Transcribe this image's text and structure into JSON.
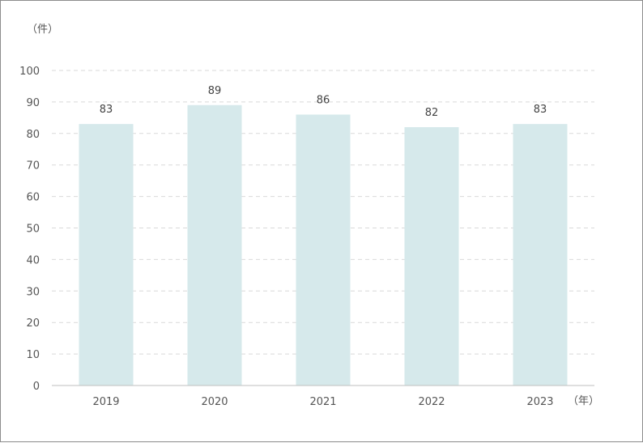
{
  "chart_data": {
    "type": "bar",
    "y_unit_label": "（件）",
    "x_unit_label": "（年）",
    "categories": [
      "2019",
      "2020",
      "2021",
      "2022",
      "2023"
    ],
    "values": [
      83,
      89,
      86,
      82,
      83
    ],
    "yticks": [
      0,
      10,
      20,
      30,
      40,
      50,
      60,
      70,
      80,
      90,
      100
    ],
    "ylim": [
      0,
      100
    ],
    "grid": true,
    "data_labels": true,
    "bar_color": "#d6e9eb",
    "axis_color": "#bfbfbf",
    "grid_color": "#d9d9d9"
  }
}
